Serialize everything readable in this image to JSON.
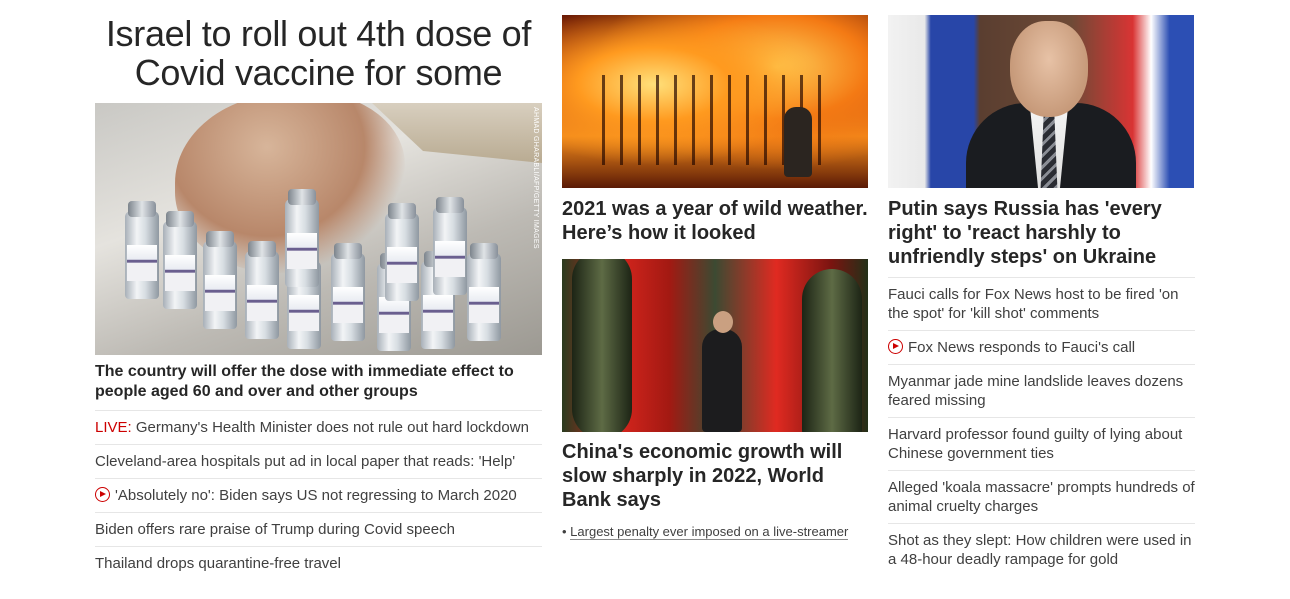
{
  "left": {
    "title": "Israel to roll out 4th dose of Covid vaccine for some",
    "image_credit": "AHMAD GHARABLI/AFP/GETTY IMAGES",
    "subtitle": "The country will offer the dose with immediate effect to people aged 60 and over and other groups",
    "items": [
      {
        "prefix": "LIVE:",
        "text": " Germany's Health Minister does not rule out hard lockdown"
      },
      {
        "text": "Cleveland-area hospitals put ad in local paper that reads: 'Help'"
      },
      {
        "icon": "play-icon",
        "text": "'Absolutely no': Biden says US not regressing to March 2020"
      },
      {
        "text": "Biden offers rare praise of Trump during Covid speech"
      },
      {
        "text": "Thailand drops quarantine-free travel"
      }
    ]
  },
  "middle": {
    "card1": {
      "title": "2021 was a year of wild weather. Here’s how it looked"
    },
    "card2": {
      "title": "China's economic growth will slow sharply in 2022, World Bank says",
      "bullet": "Largest penalty ever imposed on a live-streamer"
    }
  },
  "right": {
    "title": "Putin says Russia has 'every right' to 'react harshly to unfriendly steps' on Ukraine",
    "items": [
      {
        "text": "Fauci calls for Fox News host to be fired 'on the spot' for 'kill shot' comments"
      },
      {
        "icon": "play-icon",
        "text": "Fox News responds to Fauci's call"
      },
      {
        "text": "Myanmar jade mine landslide leaves dozens feared missing"
      },
      {
        "text": "Harvard professor found guilty of lying about Chinese government ties"
      },
      {
        "text": "Alleged 'koala massacre' prompts hundreds of animal cruelty charges"
      },
      {
        "text": "Shot as they slept: How children were used in a 48-hour deadly rampage for gold"
      }
    ]
  },
  "colors": {
    "live": "#cc0000",
    "text": "#262626",
    "divider": "#e6e6e6"
  }
}
